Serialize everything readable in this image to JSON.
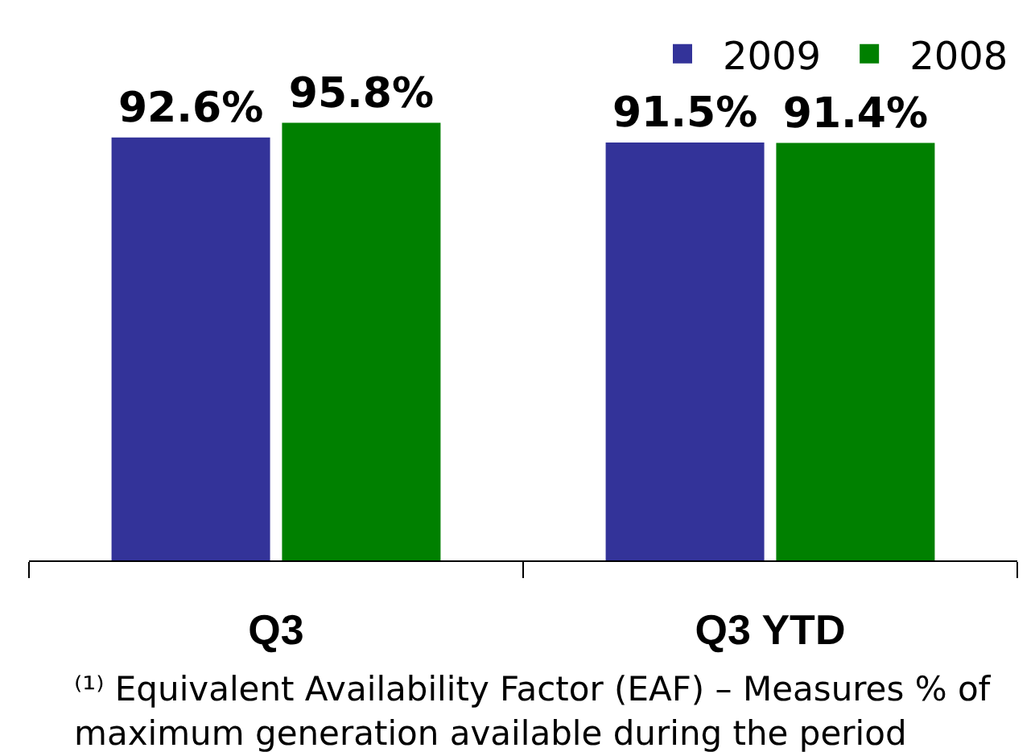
{
  "chart_data": {
    "type": "bar",
    "categories": [
      "Q3",
      "Q3 YTD"
    ],
    "series": [
      {
        "name": "2009",
        "color": "#333399",
        "values": [
          92.6,
          91.5
        ],
        "value_labels": [
          "92.6%",
          "91.5%"
        ]
      },
      {
        "name": "2008",
        "color": "#008000",
        "values": [
          95.8,
          91.4
        ],
        "value_labels": [
          "95.8%",
          "91.4%"
        ]
      }
    ],
    "tick_labels": "x",
    "legend": "top right",
    "annotations": [
      "⁽¹⁾ Equivalent Availability Factor (EAF) – Measures % of maximum generation available during the period"
    ]
  }
}
